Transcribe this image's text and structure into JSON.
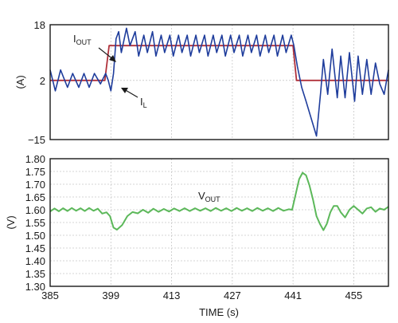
{
  "chart_data": [
    {
      "type": "line",
      "ylabel": "(A)",
      "xlim": [
        385,
        463
      ],
      "ylim": [
        -15,
        18
      ],
      "yticks": [
        "18",
        "2",
        "−15"
      ],
      "grid": true,
      "annotations": [
        {
          "main": "I",
          "sub": "OUT"
        },
        {
          "main": "I",
          "sub": "L"
        }
      ],
      "colors": {
        "i_out": "#b0303a",
        "i_l": "#1f3d9c"
      },
      "series": [
        {
          "name": "IOUT",
          "x": [
            385,
            397.6,
            398.6,
            441.0,
            441.8,
            463
          ],
          "y": [
            2,
            2,
            12,
            12,
            2,
            2
          ]
        },
        {
          "name": "IL",
          "x": [
            385,
            386.2,
            387.4,
            389.0,
            390.2,
            391.6,
            392.8,
            394.0,
            395.2,
            396.6,
            397.8,
            398.4,
            399.0,
            399.6,
            400.2,
            400.8,
            401.4,
            402.6,
            403.4,
            404.6,
            405.4,
            406.6,
            407.4,
            408.6,
            409.4,
            410.6,
            411.4,
            412.6,
            413.4,
            414.6,
            415.4,
            416.6,
            417.4,
            418.6,
            419.4,
            420.6,
            421.4,
            422.6,
            423.4,
            424.6,
            425.4,
            426.6,
            427.4,
            428.6,
            429.4,
            430.6,
            431.4,
            432.6,
            433.4,
            434.6,
            435.4,
            436.6,
            437.4,
            438.6,
            439.4,
            440.6,
            441.2,
            442.0,
            443.0,
            444.0,
            446.4,
            447.4,
            448.0,
            449.0,
            450.0,
            451.2,
            452.0,
            453.0,
            454.0,
            455.2,
            456.0,
            457.0,
            458.0,
            459.0,
            460.0,
            461.0,
            462.0,
            463
          ],
          "y": [
            5,
            -1,
            5,
            0,
            4,
            0,
            4,
            0,
            4,
            1,
            4,
            2,
            -1,
            4,
            14,
            16,
            10,
            17,
            12,
            16,
            9,
            15,
            10,
            16,
            9,
            15,
            10,
            15,
            9,
            15,
            10,
            15,
            9,
            15,
            10,
            15,
            9,
            15,
            10,
            15,
            9,
            15,
            10,
            15,
            9,
            15,
            10,
            15,
            9,
            15,
            10,
            15,
            9,
            15,
            10,
            15,
            12,
            6,
            0,
            -4,
            -14,
            -1,
            8,
            -2,
            11,
            -3,
            9,
            -3,
            10,
            -4,
            9,
            -2,
            8,
            -2,
            7,
            1,
            -2,
            5
          ]
        }
      ]
    },
    {
      "type": "line",
      "ylabel": "(V)",
      "xlabel": "TIME (s)",
      "xlim": [
        385,
        463
      ],
      "ylim": [
        1.3,
        1.8
      ],
      "xticks": [
        "385",
        "399",
        "413",
        "427",
        "441",
        "455"
      ],
      "yticks": [
        "1.80",
        "1.75",
        "1.70",
        "1.65",
        "1.60",
        "1.55",
        "1.50",
        "1.45",
        "1.40",
        "1.35",
        "1.30"
      ],
      "grid": true,
      "annotations": [
        {
          "main": "V",
          "sub": "OUT"
        }
      ],
      "colors": {
        "v_out": "#5cb85a"
      },
      "series": [
        {
          "name": "VOUT",
          "x": [
            385,
            386,
            387,
            388,
            389,
            390,
            391,
            392,
            393,
            394,
            395,
            396,
            397,
            398,
            398.8,
            399.6,
            400.4,
            401.6,
            402.8,
            404,
            405.2,
            406.4,
            407.6,
            408.8,
            410,
            411.2,
            412.4,
            413.6,
            414.8,
            416,
            417.2,
            418.4,
            419.6,
            420.8,
            422,
            423.2,
            424.4,
            425.6,
            426.8,
            428,
            429.2,
            430.4,
            431.6,
            432.8,
            434,
            435.2,
            436.4,
            437.6,
            438.8,
            440,
            440.8,
            441.6,
            442.4,
            443.2,
            444,
            444.8,
            445.6,
            446.4,
            447.2,
            448,
            448.8,
            449.6,
            450.4,
            451.2,
            452,
            453,
            454,
            455,
            456,
            457,
            458,
            459,
            460,
            461,
            462,
            463
          ],
          "y": [
            1.593,
            1.605,
            1.594,
            1.606,
            1.595,
            1.607,
            1.596,
            1.606,
            1.595,
            1.607,
            1.596,
            1.604,
            1.585,
            1.59,
            1.575,
            1.53,
            1.522,
            1.54,
            1.575,
            1.591,
            1.586,
            1.6,
            1.588,
            1.604,
            1.592,
            1.603,
            1.593,
            1.605,
            1.595,
            1.606,
            1.595,
            1.606,
            1.596,
            1.606,
            1.595,
            1.607,
            1.596,
            1.606,
            1.595,
            1.607,
            1.596,
            1.606,
            1.595,
            1.607,
            1.596,
            1.606,
            1.595,
            1.607,
            1.596,
            1.602,
            1.6,
            1.66,
            1.72,
            1.745,
            1.735,
            1.695,
            1.64,
            1.575,
            1.545,
            1.52,
            1.545,
            1.59,
            1.615,
            1.615,
            1.59,
            1.57,
            1.6,
            1.615,
            1.6,
            1.585,
            1.605,
            1.61,
            1.592,
            1.605,
            1.6,
            1.612
          ]
        }
      ]
    }
  ]
}
